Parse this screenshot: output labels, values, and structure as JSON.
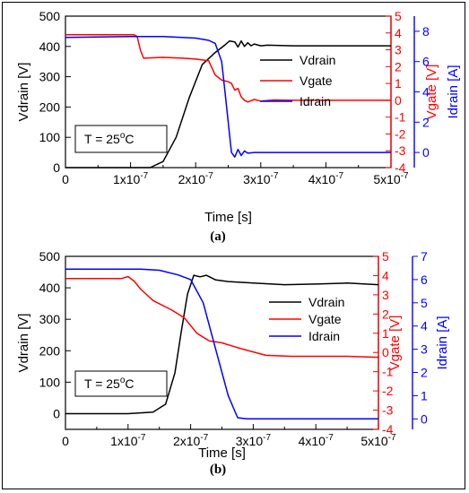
{
  "colors": {
    "vdrain": "#000000",
    "vgate": "#ff0000",
    "idrain": "#0000ff"
  },
  "chart_data": [
    {
      "type": "line",
      "caption": "(a)",
      "xlabel": "Time [s]",
      "ylabel": "Vdrain [V]",
      "ylabel_right": "Vgate [V]",
      "ylabel_far": "Idrain [A]",
      "xlim": [
        0,
        5e-07
      ],
      "ylim": [
        0,
        500
      ],
      "ylim_right": [
        -4,
        5
      ],
      "ylim_far": [
        -1,
        9
      ],
      "xticks": [
        "0",
        "1x10",
        "2x10",
        "3x10",
        "4x10",
        "5x10"
      ],
      "xtick_exp": "-7",
      "yticks": [
        "0",
        "100",
        "200",
        "300",
        "400",
        "500"
      ],
      "yticks_right": [
        "-4",
        "-3",
        "-2",
        "-1",
        "0",
        "1",
        "2",
        "3",
        "4",
        "5"
      ],
      "yticks_far": [
        "0",
        "2",
        "4",
        "6",
        "8"
      ],
      "annotation_prefix": "T = 25",
      "annotation_sup": "o",
      "annotation_suffix": "C",
      "legend_position": "top-right",
      "series": [
        {
          "name": "Vdrain",
          "axis": "left",
          "color": "#000000",
          "x": [
            0,
            1.15e-07,
            1.3e-07,
            1.5e-07,
            1.7e-07,
            1.9e-07,
            2.1e-07,
            2.3e-07,
            2.45e-07,
            2.52e-07,
            2.6e-07,
            2.65e-07,
            2.7e-07,
            2.75e-07,
            2.8e-07,
            2.85e-07,
            2.9e-07,
            3e-07,
            3.1e-07,
            3.5e-07,
            5e-07
          ],
          "y": [
            0,
            0,
            0,
            20,
            100,
            230,
            340,
            380,
            405,
            418,
            415,
            398,
            418,
            400,
            412,
            402,
            408,
            402,
            404,
            402,
            402
          ]
        },
        {
          "name": "Vgate",
          "axis": "right",
          "color": "#ff0000",
          "x": [
            0,
            1.05e-07,
            1.1e-07,
            1.15e-07,
            1.2e-07,
            1.5e-07,
            1.8e-07,
            2e-07,
            2.2e-07,
            2.3e-07,
            2.4e-07,
            2.5e-07,
            2.55e-07,
            2.6e-07,
            2.65e-07,
            2.7e-07,
            2.75e-07,
            2.8e-07,
            2.9e-07,
            3e-07,
            3.2e-07,
            3.5e-07,
            5e-07
          ],
          "y": [
            3.9,
            3.9,
            3.8,
            3.0,
            2.5,
            2.55,
            2.5,
            2.45,
            2.35,
            1.5,
            1.2,
            1.1,
            1.0,
            0.6,
            0.7,
            0.2,
            0.0,
            -0.1,
            0.05,
            -0.05,
            0.02,
            0.0,
            0.0
          ]
        },
        {
          "name": "Idrain",
          "axis": "far",
          "color": "#0000ff",
          "x": [
            0,
            1e-07,
            1.5e-07,
            2e-07,
            2.2e-07,
            2.3e-07,
            2.4e-07,
            2.45e-07,
            2.5e-07,
            2.55e-07,
            2.6e-07,
            2.65e-07,
            2.7e-07,
            2.75e-07,
            2.8e-07,
            2.9e-07,
            3e-07,
            5e-07
          ],
          "y": [
            7.6,
            7.65,
            7.65,
            7.55,
            7.4,
            7.2,
            6.0,
            4.0,
            2.0,
            0.0,
            -0.3,
            0.2,
            -0.2,
            0.1,
            -0.05,
            0.0,
            0.0,
            0.0
          ]
        }
      ]
    },
    {
      "type": "line",
      "caption": "(b)",
      "xlabel": "Time [s]",
      "ylabel": "Vdrain [V]",
      "ylabel_right": "Vgate [V]",
      "ylabel_far": "Idrain [A]",
      "xlim": [
        0,
        5e-07
      ],
      "ylim": [
        -50,
        500
      ],
      "ylim_right": [
        -4,
        5
      ],
      "ylim_far": [
        -0.45,
        7
      ],
      "xticks": [
        "0",
        "1x10",
        "2x10",
        "3x10",
        "4x10",
        "5x10"
      ],
      "xtick_exp": "-7",
      "yticks": [
        "0",
        "100",
        "200",
        "300",
        "400",
        "500"
      ],
      "yticks_right": [
        "-4",
        "-3",
        "-2",
        "-1",
        "0",
        "1",
        "2",
        "3",
        "4",
        "5"
      ],
      "yticks_far": [
        "0",
        "1",
        "2",
        "3",
        "4",
        "5",
        "6",
        "7"
      ],
      "annotation_prefix": "T = 25",
      "annotation_sup": "o",
      "annotation_suffix": "C",
      "legend_position": "top-right",
      "series": [
        {
          "name": "Vdrain",
          "axis": "left",
          "color": "#000000",
          "x": [
            0,
            1e-07,
            1.4e-07,
            1.6e-07,
            1.75e-07,
            1.85e-07,
            1.95e-07,
            2.05e-07,
            2.15e-07,
            2.25e-07,
            2.4e-07,
            2.6e-07,
            3e-07,
            3.5e-07,
            4e-07,
            4.5e-07,
            5e-07
          ],
          "y": [
            0,
            0,
            5,
            30,
            130,
            260,
            380,
            440,
            435,
            440,
            425,
            420,
            415,
            410,
            412,
            415,
            410
          ]
        },
        {
          "name": "Vgate",
          "axis": "right",
          "color": "#ff0000",
          "x": [
            0,
            9e-08,
            1e-07,
            1.1e-07,
            1.2e-07,
            1.4e-07,
            1.7e-07,
            1.9e-07,
            2.1e-07,
            2.3e-07,
            2.5e-07,
            2.8e-07,
            3.2e-07,
            3.6e-07,
            4e-07,
            4.5e-07,
            5e-07
          ],
          "y": [
            3.85,
            3.85,
            3.95,
            3.7,
            3.3,
            2.7,
            2.2,
            1.8,
            1.0,
            0.6,
            0.5,
            0.2,
            -0.15,
            -0.2,
            -0.2,
            -0.2,
            -0.25
          ]
        },
        {
          "name": "Idrain",
          "axis": "far",
          "color": "#0000ff",
          "x": [
            0,
            1.2e-07,
            1.5e-07,
            1.8e-07,
            2e-07,
            2.2e-07,
            2.4e-07,
            2.6e-07,
            2.75e-07,
            2.9e-07,
            3.2e-07,
            5e-07
          ],
          "y": [
            6.45,
            6.45,
            6.4,
            6.2,
            6.0,
            5.0,
            3.0,
            1.0,
            0.05,
            0.0,
            0.0,
            0.0
          ]
        }
      ]
    }
  ]
}
